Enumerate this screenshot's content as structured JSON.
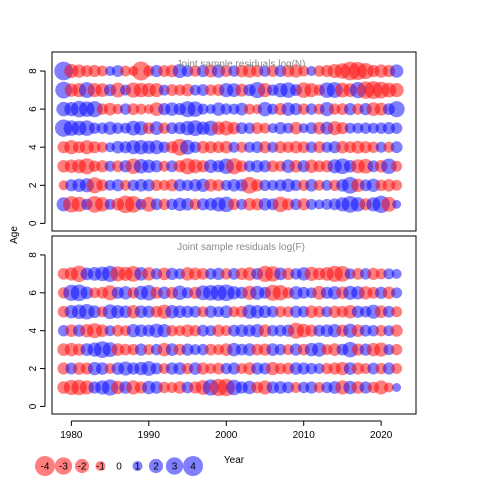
{
  "chart_data": {
    "type": "bubble",
    "ylabel": "Age",
    "xlabel": "Year",
    "x_ticks": [
      1980,
      1990,
      2000,
      2010,
      2020
    ],
    "y_ticks": [
      0,
      2,
      4,
      6,
      8
    ],
    "xlim": [
      1977.5,
      2024.5
    ],
    "ylim": [
      -0.4,
      9.0
    ],
    "years_first": 1979,
    "years_last": 2022,
    "colors": {
      "negative": "#ff0000",
      "positive": "#0000ff"
    },
    "fill_opacity": 0.5,
    "panels": [
      {
        "title": "Joint sample residuals log(N)",
        "ages": [
          1,
          2,
          3,
          4,
          5,
          6,
          7,
          8
        ],
        "residual_rows": {
          "8": "+3.5 -2.0 -1.8 -1.4 -1.5 -1.2 +1.0 +1.4 -1.2 -1.0 -3.6 -1.2 +1.5 -1.4 -1.6 +2.0 +1.4 -1.3 +1.5 -1.7 +1.8 -1.4 +1.3 -1.6 -1.8 -1.5 +1.3 -1.4 +1.4 -1.6 -1.8 -1.2 +1.0 -1.3 -1.5 -2.0 -2.4 -3.5 -3.3 -2.6 -1.5 -1.8 -1.5 +1.8",
          "7": "+2.8 -1.8 -2.0 +2.5 -2.0 -1.9 +1.5 -2.2 +1.2 -2.3 -2.1 -2.0 -2.0 +1.2 -1.4 -1.3 -1.6 +1.2 +1.4 -1.3 -1.4 +2.0 +1.9 -1.7 +1.5 +2.6 -2.0 +1.3 +2.1 +2.4 +1.4 -2.4 -2.0 -1.3 +2.4 +2.5 -2.2 -1.9 +2.6 -3.0 -3.2 -2.8 -2.2 -2.0",
          "6": "+2.1 +2.0 +2.7 +2.4 +2.6 -1.3 -1.6 -1.1 +1.3 -1.4 -1.2 -1.0 -1.9 +1.5 +1.8 +1.5 +2.6 +2.4 +1.2 +1.0 +1.8 +1.3 +1.2 +1.6 -1.2 -1.0 +2.1 +1.2 -1.5 +1.8 +1.5 -1.3 +1.3 -1.2 +2.0 -1.3 -1.4 +1.5 -1.3 +1.5 -1.9 -1.7 +1.4 +2.6",
          "5": "+3.0 +2.4 +2.2 +2.4 +1.3 +1.3 +1.8 +1.3 +1.2 +2.2 +2.0 -1.4 +1.9 -1.3 +1.4 +1.5 +2.1 +2.5 +1.8 +2.3 -1.8 -2.2 -1.6 +1.4 +1.3 -1.4 -1.2 +1.0 +1.5 +1.2 -1.6 +1.0 +1.4 -1.6 +1.7 -2.0 -1.5 +1.2 +1.2 +1.3 +1.2 +1.3 +1.5 +1.3",
          "4": "-1.5 -2.0 -1.5 -2.0 -1.5 -1.2 +1.0 +1.6 +1.5 +2.0 +2.1 +1.8 +2.0 +1.3 -1.5 -2.8 +2.2 +1.3 -1.6 -1.5 -1.4 -1.6 +1.2 -1.2 +1.2 +1.4 -1.5 +1.2 -1.5 -1.3 -1.6 -1.4 +1.3 -1.4 +1.2 +1.5 -1.6 -1.4 -1.7 -1.5 -1.3 +1.2 -1.2 +1.4",
          "3": "-1.6 -1.8 -2.0 -2.6 -1.3 -1.5 +1.2 -1.4 +1.5 -2.4 +2.1 +1.8 +1.5 -1.2 +1.4 -1.5 -2.6 -2.0 -1.5 +1.8 +1.5 +2.4 -2.6 -1.4 +1.3 +1.6 +1.5 -1.4 -1.2 +1.8 -1.6 +1.5 -1.8 -1.4 -1.5 +2.0 +2.5 +1.6 -2.0 -2.2 +1.4 -1.6 +2.4 -1.2",
          "2": "-1.0 +1.5 +1.8 +2.0 -2.6 -1.4 +1.2 +1.5 -1.2 +1.3 +1.6 +1.5 -1.3 -1.2 -1.5 +1.5 +1.3 +1.6 +1.8 -1.6 -1.4 +1.2 +1.6 +1.5 -2.8 -1.5 +1.3 +1.2 +1.4 +1.8 +1.3 -1.3 +1.6 -1.2 +1.2 -1.3 +1.6 +2.8 -1.8 +1.4 +1.8 -1.3 -1.6 -1.2",
          "1": "+2.0 -2.7 -2.3 +1.3 -2.8 -2.1 +1.2 -1.6 -3.1 -2.8 +1.2 -2.2 +1.4 -1.3 +1.3 +1.8 +1.6 -1.3 +1.5 +1.6 +2.1 +2.4 -1.3 +1.2 -1.6 -1.5 +1.6 +1.4 -2.4 -1.5 +1.3 -1.5 +1.2 +1.0 +1.2 +1.4 +2.0 +2.8 +2.1 -1.5 +2.0 +3.0 -2.2 +0.8"
        }
      },
      {
        "title": "Joint sample residuals log(F)",
        "ages": [
          1,
          2,
          3,
          4,
          5,
          6,
          7
        ],
        "residual_rows": {
          "7": "-1.4 -1.8 -2.7 +1.6 +1.9 +2.1 +2.6 -2.3 -2.0 -2.5 +1.8 -1.8 +1.3 -1.6 +1.5 +1.2 -1.8 -1.6 -1.4 +1.3 +1.5 -1.3 +1.4 -1.5 -1.8 +1.4 -2.6 -2.4 +1.6 -1.5 +1.3 +1.8 -2.0 -1.6 -1.9 -2.6 -2.5 +1.2 -1.4 +1.3 -1.5 -1.2 +1.2 +1.0",
          "6": "-1.3 +2.6 +2.8 +1.6 -1.2 -1.4 -2.3 +1.5 +1.8 -1.3 +2.0 +2.4 -1.5 +1.6 -1.4 +2.1 +1.3 -1.5 +2.2 +2.4 +2.6 +2.8 +1.8 +1.5 -2.0 +2.0 +1.4 -2.6 -2.4 -1.3 +1.8 +1.4 +1.2 -1.9 +1.5 +1.8 -1.6 +2.0 +1.8 -1.8 -1.4 +1.5 -1.6 +1.2",
          "5": "-1.4 +1.8 +2.1 +2.4 +1.6 -1.2 +2.2 +1.8 +1.6 -1.8 +1.6 +1.5 -1.4 -2.0 +1.8 +1.6 +1.5 +1.4 -1.2 +1.5 +1.2 +1.6 -1.2 -1.4 +2.0 +1.8 +1.6 +1.4 -1.3 -1.2 +1.5 +1.3 -1.6 -1.4 +1.2 -1.5 -1.4 -1.8 +1.5 +1.3 +2.0 -1.6 +1.4 -1.2",
          "4": "+1.3 -1.6 +1.5 -1.8 -2.3 -1.6 +1.2 -1.4 -1.2 +1.8 +1.6 +1.5 +2.0 +1.8 -1.3 -1.2 -1.6 -1.3 +1.4 +1.2 -1.5 -1.2 +1.4 +1.6 +1.5 +1.8 -1.6 +1.3 +1.4 +1.5 -2.6 -1.9 -1.5 +1.4 +1.6 +1.8 -1.5 +2.0 -1.6 +1.4 +1.3 -1.3 +1.2 -1.5",
          "3": "-1.6 -1.8 -1.5 +1.6 +2.0 +2.8 +2.2 -1.6 -1.4 -1.3 +1.5 -1.2 +1.3 -1.8 +1.6 -1.4 +1.5 +1.2 +1.3 -1.4 -1.2 -1.6 +1.8 +1.4 +1.6 -1.4 -1.5 +1.6 +1.3 -1.2 +1.5 -1.4 +1.8 +2.0 -1.2 -1.6 +1.4 +2.4 -1.5 +1.5 -1.8 -2.0 +1.2 -1.3",
          "2": "-1.5 +1.4 -1.6 -1.5 +1.8 +1.6 -1.2 +1.6 +2.0 +1.5 +1.8 +2.2 +1.4 -1.2 +1.5 +1.6 -1.3 +1.6 -1.5 -1.2 -1.4 +1.3 +1.5 -1.2 -1.6 +1.5 +1.4 -1.8 -1.3 -1.4 +1.6 +1.5 +1.3 +1.2 -1.3 -1.5 -1.8 +1.6 -1.5 -1.2 +1.4 -1.3 +1.5 -1.2",
          "1": "-1.6 -2.3 -2.4 -2.0 +1.5 +2.0 +2.6 -1.8 +1.6 -2.0 -1.5 +1.8 +1.6 -1.3 -1.2 -1.6 +1.4 -1.5 -2.2 +2.6 -3.0 -3.0 +2.4 +1.5 +1.8 -1.4 -2.0 +1.5 +1.6 +1.4 -1.2 +1.3 +1.5 -1.2 +1.3 +1.6 -2.0 +1.8 -1.6 +1.5 -1.3 -2.0 -1.0 +0.8"
        }
      }
    ],
    "legend": {
      "values": [
        -4,
        -3,
        -2,
        -1,
        0,
        1,
        2,
        3,
        4
      ],
      "labels": [
        "-4",
        "-3",
        "-2",
        "-1",
        "0",
        "1",
        "2",
        "3",
        "4"
      ]
    }
  }
}
